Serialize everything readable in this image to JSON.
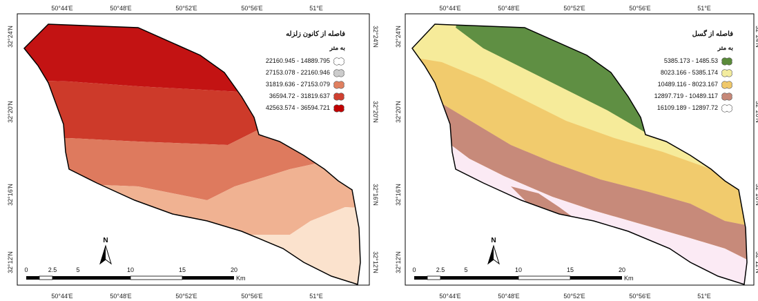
{
  "maps": [
    {
      "legend": {
        "title": "فاصله از کانون زلزله",
        "unit": "به متر",
        "items": [
          {
            "label": "22160.945 - 14889.795",
            "color": "#ffffff"
          },
          {
            "label": "27153.078 - 22160.946",
            "color": "#cccccc"
          },
          {
            "label": "31819.636 - 27153.079",
            "color": "#e08060"
          },
          {
            "label": "36594.72 - 31819.637",
            "color": "#d04030"
          },
          {
            "label": "42563.574 - 36594.721",
            "color": "#c00000"
          }
        ]
      },
      "zone_colors": [
        "#c31313",
        "#cd3a2a",
        "#de7a5e",
        "#f0b292",
        "#fbe2cd"
      ]
    },
    {
      "legend": {
        "title": "فاصله از گسل",
        "unit": "به متر",
        "items": [
          {
            "label": "5385.173 - 1485.53",
            "color": "#5a8a3a"
          },
          {
            "label": "8023.166 - 5385.174",
            "color": "#f3ec9e"
          },
          {
            "label": "10489.116 - 8023.167",
            "color": "#f0c86a"
          },
          {
            "label": "12897.719 - 10489.117",
            "color": "#c68878"
          },
          {
            "label": "16109.189 - 12897.72",
            "color": "#ffffff"
          }
        ]
      },
      "zone_colors": [
        "#ffeaa8",
        "#5f8f43",
        "#f6eb9a",
        "#f1cb6d",
        "#c78a7a",
        "#fbeaf4"
      ]
    }
  ],
  "axes": {
    "lon_ticks": [
      "50°44'E",
      "50°48'E",
      "50°52'E",
      "50°56'E",
      "51°E"
    ],
    "lat_ticks": [
      "32°24'N",
      "32°20'N",
      "32°16'N",
      "32°12'N"
    ]
  },
  "north": "N",
  "scale": {
    "ticks": [
      "0",
      "2.5",
      "5",
      "10",
      "15",
      "20"
    ],
    "unit": "Km"
  }
}
